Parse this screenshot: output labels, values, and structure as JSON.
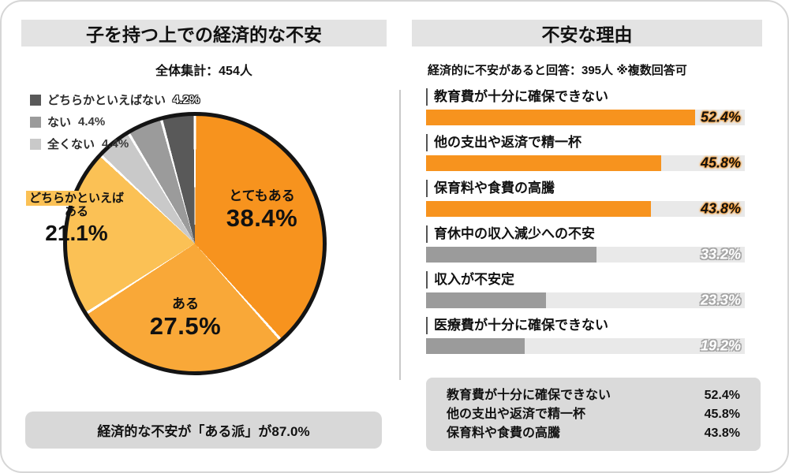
{
  "colors": {
    "accent_orange": "#f7931e",
    "orange_mid": "#f9a838",
    "orange_light": "#fbc155",
    "gray_dark": "#595959",
    "gray_mid": "#9b9b9b",
    "gray_light": "#c9c9c9",
    "bar_track": "#e9e9e9",
    "title_strip": "#e3e3e3",
    "footer_box": "#d8d8d8"
  },
  "left": {
    "title": "子を持つ上での経済的な不安",
    "subtitle": "全体集計：454人",
    "legend": [
      {
        "label": "どちらかといえばない",
        "value": "4.2%",
        "color": "#595959"
      },
      {
        "label": "ない",
        "value": "4.4%",
        "color": "#9b9b9b"
      },
      {
        "label": "全くない",
        "value": "4.4%",
        "color": "#c9c9c9"
      }
    ],
    "labels": {
      "totemo": {
        "name": "とてもある",
        "value": "38.4%"
      },
      "aru": {
        "name": "ある",
        "value": "27.5%"
      },
      "dochira": {
        "line1": "どちらかといえば",
        "line2": "ある",
        "value": "21.1%"
      }
    },
    "footer": "経済的な不安が「ある派」が87.0%"
  },
  "right": {
    "title": "不安な理由",
    "subtitle": "経済的に不安があると回答：395人 ※複数回答可",
    "scale_max": 62,
    "bars": [
      {
        "label": "教育費が十分に確保できない",
        "value": 52.4,
        "display": "52.4%",
        "highlight": true
      },
      {
        "label": "他の支出や返済で精一杯",
        "value": 45.8,
        "display": "45.8%",
        "highlight": true
      },
      {
        "label": "保育料や食費の高騰",
        "value": 43.8,
        "display": "43.8%",
        "highlight": true
      },
      {
        "label": "育休中の収入減少への不安",
        "value": 33.2,
        "display": "33.2%",
        "highlight": false
      },
      {
        "label": "収入が不安定",
        "value": 23.3,
        "display": "23.3%",
        "highlight": false
      },
      {
        "label": "医療費が十分に確保できない",
        "value": 19.2,
        "display": "19.2%",
        "highlight": false
      }
    ],
    "summary": [
      {
        "label": "教育費が十分に確保できない",
        "value": "52.4%"
      },
      {
        "label": "他の支出や返済で精一杯",
        "value": "45.8%"
      },
      {
        "label": "保育料や食費の高騰",
        "value": "43.8%"
      }
    ]
  },
  "chart_data": [
    {
      "type": "pie",
      "title": "子を持つ上での経済的な不安",
      "subtitle": "全体集計：454人",
      "n_total": 454,
      "labels": [
        "とてもある",
        "ある",
        "どちらかといえばある",
        "全くない",
        "ない",
        "どちらかといえばない"
      ],
      "values": [
        38.4,
        27.5,
        21.1,
        4.4,
        4.4,
        4.2
      ],
      "colors": [
        "#f7931e",
        "#f9a838",
        "#fbc155",
        "#c9c9c9",
        "#9b9b9b",
        "#595959"
      ],
      "start_angle": "top",
      "direction": "clockwise",
      "annotation": "経済的な不安が「ある派」が87.0%"
    },
    {
      "type": "bar",
      "orientation": "horizontal",
      "title": "不安な理由",
      "subtitle": "経済的に不安があると回答：395人 ※複数回答可",
      "n_respondents": 395,
      "categories": [
        "教育費が十分に確保できない",
        "他の支出や返済で精一杯",
        "保育料や食費の高騰",
        "育休中の収入減少への不安",
        "収入が不安定",
        "医療費が十分に確保できない"
      ],
      "values": [
        52.4,
        45.8,
        43.8,
        33.2,
        23.3,
        19.2
      ],
      "xlim": [
        0,
        62
      ],
      "highlight_color": "#f7931e",
      "muted_color": "#9b9b9b",
      "track_color": "#e9e9e9",
      "legend_position": "none",
      "grid": false
    }
  ]
}
